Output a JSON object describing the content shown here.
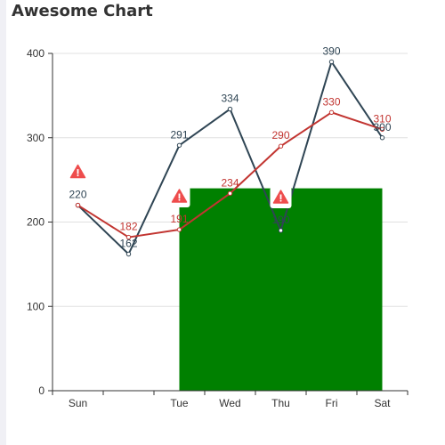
{
  "chart_data": {
    "title": "Awesome Chart",
    "type": "line",
    "categories": [
      "Sun",
      "",
      "Tue",
      "Wed",
      "Thu",
      "Fri",
      "Sat"
    ],
    "ylim": [
      0,
      400
    ],
    "yticks": [
      0,
      100,
      200,
      300,
      400
    ],
    "grid": true,
    "series": [
      {
        "type": "line",
        "color": "#2f4554",
        "values": [
          220,
          162,
          291,
          334,
          190,
          390,
          300
        ],
        "labels": [
          "220",
          "162",
          "291",
          "334",
          "190",
          "390",
          "300"
        ]
      },
      {
        "type": "line",
        "color": "#c23531",
        "values": [
          220,
          182,
          191,
          234,
          290,
          330,
          310
        ],
        "labels": [
          "",
          "182",
          "191",
          "234",
          "290",
          "330",
          "310"
        ]
      }
    ],
    "mark_area": {
      "x_from": "Tue",
      "x_to": "Sat",
      "y_from": 0,
      "y_to": 240,
      "color": "#008000"
    },
    "mark_points": [
      {
        "category": "Sun",
        "value": 220,
        "icon": "warning-icon",
        "color": "#ee4d4d"
      },
      {
        "category": "Tue",
        "value": 191,
        "icon": "warning-icon",
        "color": "#ee4d4d"
      },
      {
        "category": "Thu",
        "value": 190,
        "icon": "warning-icon",
        "color": "#ee4d4d"
      }
    ]
  }
}
